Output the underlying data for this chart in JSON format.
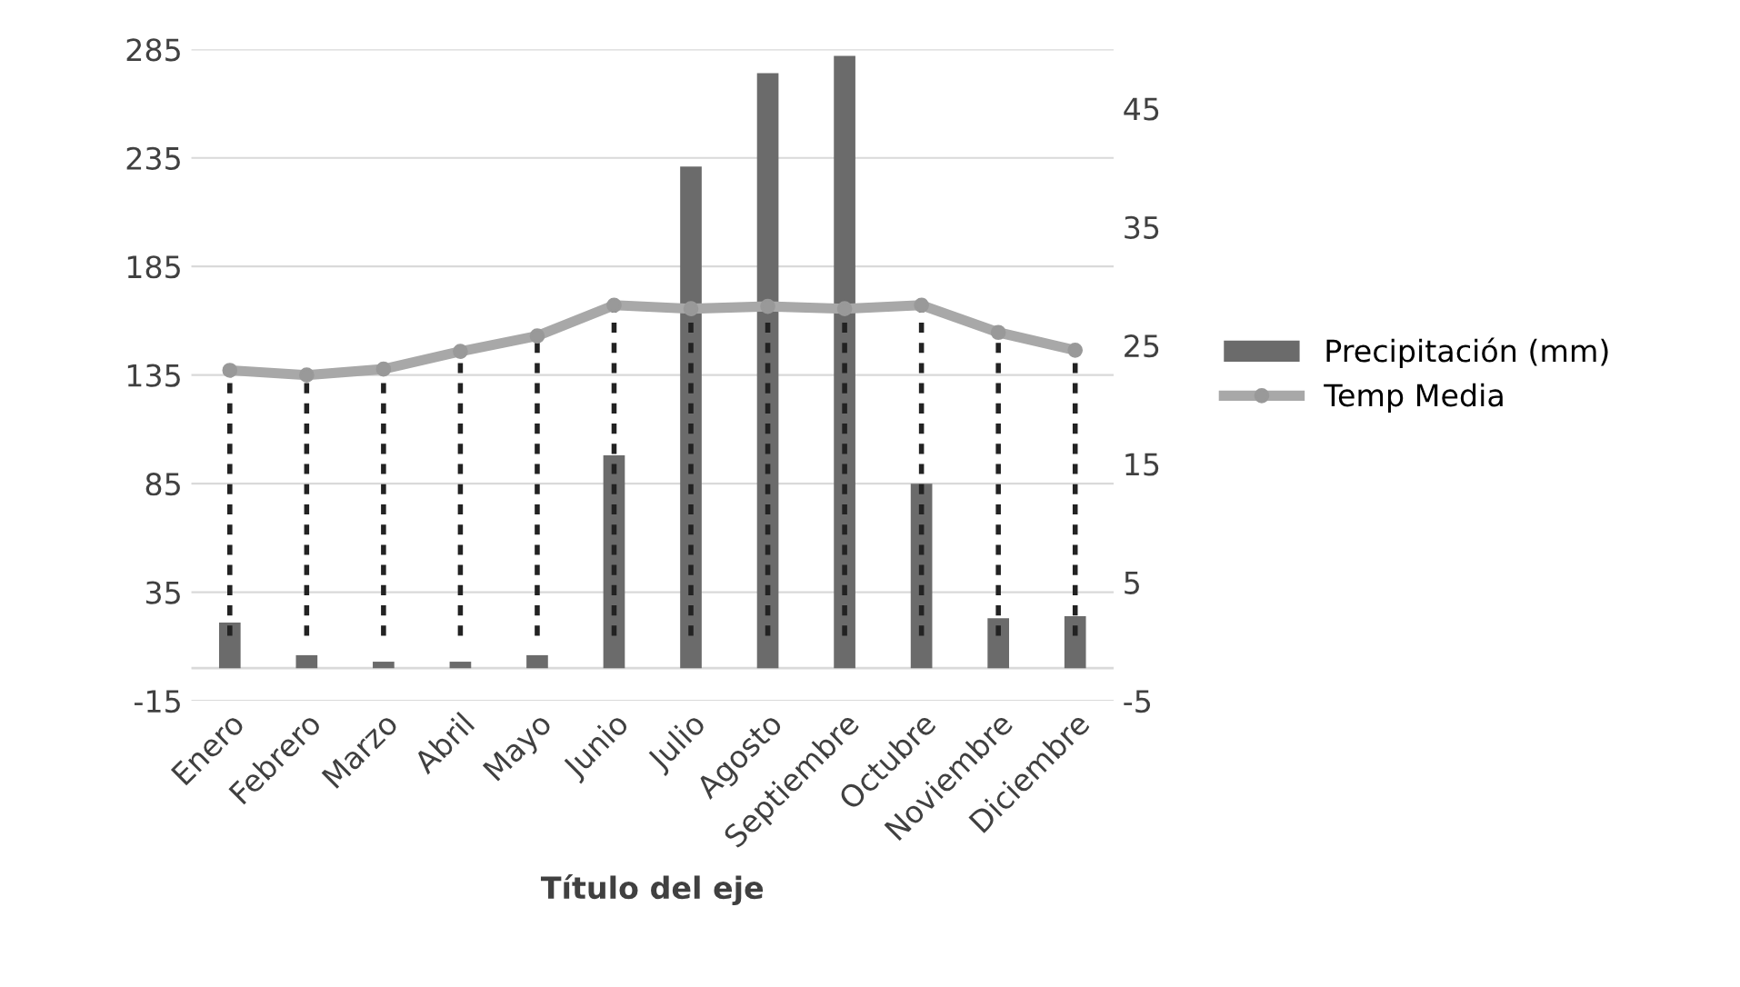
{
  "chart_data": {
    "type": "bar",
    "xlabel": "Título del eje",
    "categories": [
      "Enero",
      "Febrero",
      "Marzo",
      "Abril",
      "Mayo",
      "Junio",
      "Julio",
      "Agosto",
      "Septiembre",
      "Octubre",
      "Noviembre",
      "Diciembre"
    ],
    "series": [
      {
        "name": "Precipitación (mm)",
        "color": "#6b6b6b",
        "values": [
          21,
          6,
          3,
          3,
          6,
          98,
          231,
          274,
          282,
          85,
          23,
          24
        ]
      },
      {
        "name": "Temp Media",
        "type": "line",
        "axis": "y2",
        "color": "#a8a8a8",
        "marker": "circle",
        "values": [
          22.9,
          22.5,
          23.0,
          24.5,
          25.8,
          28.4,
          28.1,
          28.3,
          28.1,
          28.4,
          26.1,
          24.6
        ],
        "errors": [
          [
            0.5,
            22.9
          ],
          [
            0.5,
            22.5
          ],
          [
            0.5,
            23.0
          ],
          [
            0.5,
            24.5
          ],
          [
            0.5,
            25.8
          ],
          [
            0.5,
            28.4
          ],
          [
            0.5,
            28.1
          ],
          [
            0.5,
            28.3
          ],
          [
            0.5,
            28.1
          ],
          [
            0.5,
            28.4
          ],
          [
            0.5,
            26.1
          ],
          [
            0.5,
            24.6
          ]
        ]
      }
    ],
    "ylim": [
      -15,
      285
    ],
    "yticks": [
      -15,
      35,
      85,
      135,
      185,
      235,
      285
    ],
    "y2lim": [
      -5,
      50
    ],
    "y2ticks": [
      -5,
      5,
      15,
      25,
      35,
      45
    ],
    "grid": "y",
    "legend": "right"
  }
}
